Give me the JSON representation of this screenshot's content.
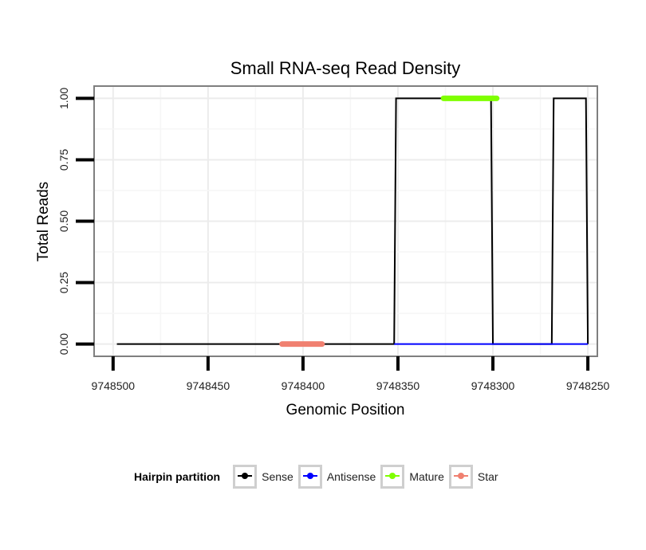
{
  "chart_data": {
    "type": "line",
    "title": "Small RNA-seq Read Density",
    "xlabel": "Genomic Position",
    "ylabel": "Total Reads",
    "xlim": [
      9748510,
      9748245
    ],
    "ylim": [
      -0.05,
      1.05
    ],
    "x_reversed": true,
    "x_ticks": [
      9748500,
      9748450,
      9748400,
      9748350,
      9748300,
      9748250
    ],
    "x_tick_labels": [
      "9748500",
      "9748450",
      "9748400",
      "9748350",
      "9748300",
      "9748250"
    ],
    "y_ticks": [
      0,
      0.25,
      0.5,
      0.75,
      1.0
    ],
    "y_tick_labels": [
      "0.00",
      "0.25",
      "0.50",
      "0.75",
      "1.00"
    ],
    "grid": true,
    "legend_position": "bottom",
    "legend_title": "Hairpin partition",
    "series": [
      {
        "name": "Sense",
        "color": "#000000",
        "style": "line",
        "x": [
          9748498,
          9748352,
          9748351,
          9748301,
          9748300,
          9748269,
          9748268,
          9748251,
          9748250
        ],
        "y": [
          0,
          0,
          1,
          1,
          0,
          0,
          1,
          1,
          0
        ]
      },
      {
        "name": "Antisense",
        "color": "#0000ff",
        "style": "line",
        "x": [
          9748352,
          9748250
        ],
        "y": [
          0,
          0
        ]
      },
      {
        "name": "Mature",
        "color": "#7fff00",
        "style": "segment",
        "x": [
          9748326,
          9748298
        ],
        "y": [
          1,
          1
        ]
      },
      {
        "name": "Star",
        "color": "#f08070",
        "style": "segment",
        "x": [
          9748411,
          9748390
        ],
        "y": [
          0,
          0
        ]
      }
    ]
  }
}
